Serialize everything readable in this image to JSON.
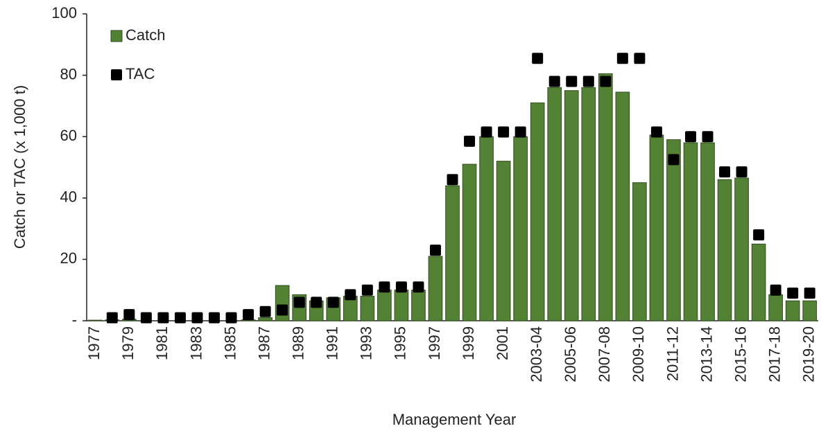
{
  "chart_data": {
    "type": "bar",
    "x_label": "Management Year",
    "y_label": "Catch or TAC (x 1,000 t)",
    "categories": [
      "1977",
      null,
      "1979",
      null,
      "1981",
      null,
      "1983",
      null,
      "1985",
      null,
      "1987",
      null,
      "1989",
      null,
      "1991",
      null,
      "1993",
      null,
      "1995",
      null,
      "1997",
      null,
      "1999",
      null,
      "2001",
      null,
      "2003-04",
      null,
      "2005-06",
      null,
      "2007-08",
      null,
      "2009-10",
      null,
      "2011-12",
      null,
      "2013-14",
      null,
      "2015-16",
      null,
      "2017-18",
      null,
      "2019-20"
    ],
    "series": [
      {
        "name": "Catch",
        "color": "#548235",
        "values": [
          0.2,
          0.3,
          0.5,
          0,
          0,
          0,
          0,
          0,
          0,
          0.3,
          1,
          11.5,
          8.5,
          6.5,
          7.5,
          8,
          8,
          10,
          10,
          10,
          21,
          44,
          51,
          60,
          52,
          60,
          71,
          76,
          75,
          76,
          80.5,
          74.5,
          45,
          60.5,
          59,
          58,
          58,
          46,
          46.5,
          25,
          8.5,
          6.5,
          6.5
        ]
      },
      {
        "name": "TAC",
        "color": "#000000",
        "marker": "square",
        "values": [
          null,
          1,
          2,
          1,
          1,
          1,
          1,
          1,
          1,
          2,
          3,
          3.5,
          6,
          6,
          6,
          8.5,
          10,
          11,
          11,
          11,
          23,
          46,
          58.5,
          61.5,
          61.5,
          61.5,
          85.5,
          78,
          78,
          78,
          78,
          85.5,
          85.5,
          61.5,
          52.5,
          60,
          60,
          48.5,
          48.5,
          28,
          10,
          9,
          9
        ]
      }
    ],
    "ylim": [
      0,
      100
    ],
    "yticks": [
      {
        "value": 0,
        "label": "-"
      },
      20,
      40,
      60,
      80,
      100
    ],
    "legend": "upper left"
  }
}
